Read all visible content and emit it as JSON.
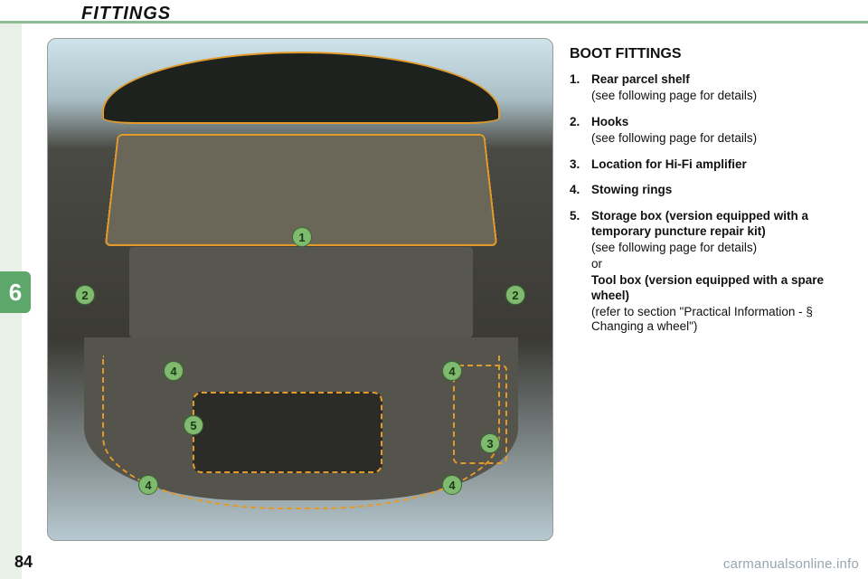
{
  "header": {
    "title": "FITTINGS"
  },
  "chapter": {
    "number": "6",
    "tab_color": "#5ea76a"
  },
  "page": {
    "number": "84"
  },
  "watermark": "carmanualsonline.info",
  "section": {
    "title": "BOOT FITTINGS",
    "items": [
      {
        "num": "1.",
        "title": "Rear parcel shelf",
        "sub": "(see following page for details)"
      },
      {
        "num": "2.",
        "title": "Hooks",
        "sub": "(see following page for details)"
      },
      {
        "num": "3.",
        "title": "Location for Hi-Fi amplifier"
      },
      {
        "num": "4.",
        "title": "Stowing rings"
      },
      {
        "num": "5.",
        "title": "Storage box (version equipped with a temporary puncture repair kit)",
        "sub": "(see following page for details)",
        "or": "or",
        "alt_title": "Tool box (version equipped with a spare wheel)",
        "alt_sub": "(refer to section \"Practical Information - § Changing a wheel\")"
      }
    ]
  },
  "figure": {
    "type": "infographic",
    "background_gradient": [
      "#cfe3ea",
      "#a9bfc6",
      "#4a4a44",
      "#3b3a34",
      "#b7c9d0"
    ],
    "outline_color": "#e29a2a",
    "callout_bg": "#7fba6e",
    "callout_border": "#3a6b33",
    "callouts": [
      {
        "label": "1",
        "name": "parcel-shelf"
      },
      {
        "label": "2",
        "name": "hook-left"
      },
      {
        "label": "2",
        "name": "hook-right"
      },
      {
        "label": "3",
        "name": "amplifier-location"
      },
      {
        "label": "4",
        "name": "stowing-ring-1"
      },
      {
        "label": "4",
        "name": "stowing-ring-2"
      },
      {
        "label": "4",
        "name": "stowing-ring-3"
      },
      {
        "label": "4",
        "name": "stowing-ring-4"
      },
      {
        "label": "5",
        "name": "storage-box"
      }
    ]
  },
  "colors": {
    "accent_green": "#8dbb94",
    "left_strip": "#e8f0e8",
    "text": "#111111"
  },
  "typography": {
    "title_fontsize_pt": 15,
    "section_title_fontsize_pt": 12,
    "body_fontsize_pt": 10
  }
}
